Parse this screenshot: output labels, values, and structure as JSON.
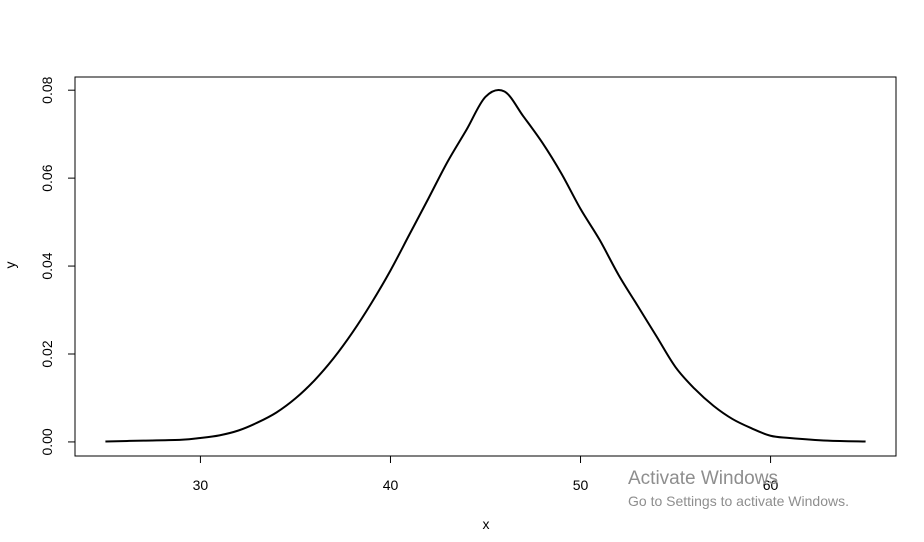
{
  "chart_data": {
    "type": "line",
    "xlabel": "x",
    "ylabel": "y",
    "xlim": [
      23.4,
      66.6
    ],
    "ylim": [
      -0.0032,
      0.083
    ],
    "x_ticks": [
      30,
      40,
      50,
      60
    ],
    "y_ticks": [
      0.0,
      0.02,
      0.04,
      0.06,
      0.08
    ],
    "y_tick_labels": [
      "0.00",
      "0.02",
      "0.04",
      "0.06",
      "0.08"
    ],
    "grid": false,
    "legend": "none",
    "line_color": "#000000",
    "series": [
      {
        "x": [
          25,
          27,
          29,
          30,
          31,
          32,
          33,
          34,
          35,
          36,
          37,
          38,
          39,
          40,
          41,
          42,
          43,
          44,
          45,
          46,
          47,
          48,
          49,
          50,
          51,
          52,
          53,
          54,
          55,
          56,
          57,
          58,
          59,
          60,
          61,
          63,
          65
        ],
        "y": [
          0.0001,
          0.0003,
          0.0005,
          0.0009,
          0.0015,
          0.0026,
          0.0044,
          0.0067,
          0.0099,
          0.014,
          0.019,
          0.0249,
          0.0316,
          0.039,
          0.0472,
          0.0554,
          0.0637,
          0.071,
          0.0785,
          0.0797,
          0.074,
          0.068,
          0.061,
          0.053,
          0.046,
          0.038,
          0.031,
          0.024,
          0.017,
          0.0121,
          0.0082,
          0.0052,
          0.0031,
          0.0014,
          0.0009,
          0.0003,
          0.0001
        ]
      }
    ]
  },
  "watermark": {
    "title": "Activate Windows",
    "subtitle": "Go to Settings to activate Windows."
  }
}
